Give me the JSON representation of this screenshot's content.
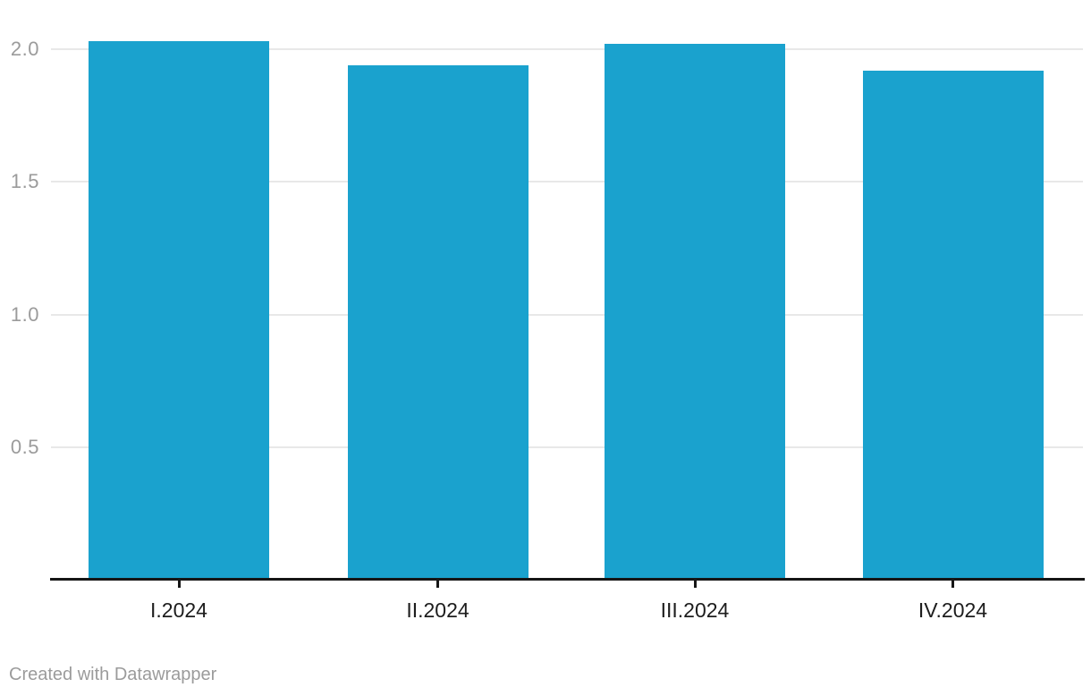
{
  "chart_data": {
    "type": "bar",
    "categories": [
      "I.2024",
      "II.2024",
      "III.2024",
      "IV.2024"
    ],
    "values": [
      2.03,
      1.94,
      2.02,
      1.92
    ],
    "title": "",
    "xlabel": "",
    "ylabel": "",
    "ylim": [
      0,
      2.1
    ],
    "yticks": [
      0.5,
      1.0,
      1.5,
      2.0
    ],
    "ytick_labels": [
      "0.5",
      "1.0",
      "1.5",
      "2.0"
    ],
    "grid": true,
    "legend": "none",
    "bar_color": "#1aa2ce"
  },
  "footer": {
    "attribution": "Created with Datawrapper"
  },
  "colors": {
    "bar": "#1aa2ce",
    "gridline": "#e8e8e8",
    "axis_line": "#161616",
    "y_tick_label": "#9b9b9b",
    "x_tick_label": "#1d1d1d",
    "attribution": "#9b9b9b",
    "background": "#ffffff"
  }
}
